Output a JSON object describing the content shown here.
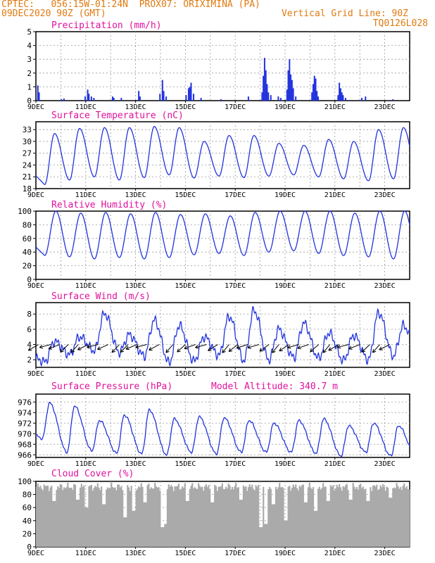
{
  "header": {
    "line1_left": "CPTEC:   056:15W-01:24N  PROX07: ORIXIMINA (PA)",
    "line2_left": "09DEC2020 90Z (GMT)",
    "line2_right": "Vertical Grid Line: 90Z",
    "line3_right": "TQ0126L028",
    "model_altitude": "Model Altitude: 340.7 m"
  },
  "colors": {
    "header": "#e07a10",
    "panel_title": "#e0119c",
    "series": "#2233dd",
    "cloud": "#aaaaaa",
    "arrow": "#000000"
  },
  "x_ticks": [
    "9DEC",
    "11DEC",
    "13DEC",
    "15DEC",
    "17DEC",
    "19DEC",
    "21DEC",
    "23DEC"
  ],
  "chart_data": [
    {
      "type": "bar",
      "title": "Precipitation (mm/h)",
      "ylim": [
        0,
        5
      ],
      "yticks": [
        "0",
        "1",
        "2",
        "3",
        "4",
        "5"
      ],
      "grid": true,
      "x_range_days": [
        0,
        15
      ],
      "points": [
        {
          "day": 0.05,
          "value": 1.1
        },
        {
          "day": 0.1,
          "value": 0.6
        },
        {
          "day": 1.0,
          "value": 0.1
        },
        {
          "day": 1.1,
          "value": 0.15
        },
        {
          "day": 1.95,
          "value": 0.3
        },
        {
          "day": 2.05,
          "value": 0.8
        },
        {
          "day": 2.1,
          "value": 0.5
        },
        {
          "day": 2.2,
          "value": 0.3
        },
        {
          "day": 2.3,
          "value": 0.2
        },
        {
          "day": 3.05,
          "value": 0.3
        },
        {
          "day": 3.1,
          "value": 0.2
        },
        {
          "day": 3.4,
          "value": 0.2
        },
        {
          "day": 4.1,
          "value": 0.7
        },
        {
          "day": 4.15,
          "value": 0.3
        },
        {
          "day": 4.95,
          "value": 0.5
        },
        {
          "day": 5.05,
          "value": 1.5
        },
        {
          "day": 5.1,
          "value": 0.7
        },
        {
          "day": 5.2,
          "value": 0.3
        },
        {
          "day": 6.0,
          "value": 0.4
        },
        {
          "day": 6.1,
          "value": 0.9
        },
        {
          "day": 6.15,
          "value": 1.0
        },
        {
          "day": 6.2,
          "value": 1.3
        },
        {
          "day": 6.3,
          "value": 0.5
        },
        {
          "day": 6.6,
          "value": 0.2
        },
        {
          "day": 7.4,
          "value": 0.1
        },
        {
          "day": 8.5,
          "value": 0.3
        },
        {
          "day": 9.05,
          "value": 0.6
        },
        {
          "day": 9.1,
          "value": 1.8
        },
        {
          "day": 9.15,
          "value": 3.1
        },
        {
          "day": 9.2,
          "value": 2.2
        },
        {
          "day": 9.25,
          "value": 1.2
        },
        {
          "day": 9.3,
          "value": 0.6
        },
        {
          "day": 9.4,
          "value": 0.4
        },
        {
          "day": 9.7,
          "value": 0.3
        },
        {
          "day": 9.8,
          "value": 0.2
        },
        {
          "day": 10.05,
          "value": 0.8
        },
        {
          "day": 10.1,
          "value": 2.2
        },
        {
          "day": 10.15,
          "value": 3.0
        },
        {
          "day": 10.2,
          "value": 1.9
        },
        {
          "day": 10.25,
          "value": 1.5
        },
        {
          "day": 10.3,
          "value": 0.9
        },
        {
          "day": 10.4,
          "value": 0.3
        },
        {
          "day": 11.05,
          "value": 0.6
        },
        {
          "day": 11.1,
          "value": 1.2
        },
        {
          "day": 11.15,
          "value": 1.8
        },
        {
          "day": 11.2,
          "value": 1.6
        },
        {
          "day": 11.25,
          "value": 0.7
        },
        {
          "day": 11.3,
          "value": 0.3
        },
        {
          "day": 12.1,
          "value": 0.4
        },
        {
          "day": 12.15,
          "value": 1.3
        },
        {
          "day": 12.2,
          "value": 0.9
        },
        {
          "day": 12.25,
          "value": 0.6
        },
        {
          "day": 12.3,
          "value": 0.4
        },
        {
          "day": 12.4,
          "value": 0.2
        },
        {
          "day": 13.05,
          "value": 0.2
        },
        {
          "day": 13.2,
          "value": 0.3
        },
        {
          "day": 14.3,
          "value": 0.1
        }
      ]
    },
    {
      "type": "line",
      "title": "Surface Temperature (nC)",
      "ylim": [
        18,
        35
      ],
      "yticks": [
        "18",
        "21",
        "24",
        "27",
        "30",
        "33"
      ],
      "grid": true,
      "daily": [
        {
          "max": 32.0,
          "min": 19.0
        },
        {
          "max": 33.3,
          "min": 20.2
        },
        {
          "max": 33.5,
          "min": 21.0
        },
        {
          "max": 33.5,
          "min": 20.2
        },
        {
          "max": 33.8,
          "min": 20.8
        },
        {
          "max": 33.5,
          "min": 21.5
        },
        {
          "max": 30.0,
          "min": 20.7
        },
        {
          "max": 31.5,
          "min": 21.2
        },
        {
          "max": 31.5,
          "min": 20.8
        },
        {
          "max": 29.5,
          "min": 21.2
        },
        {
          "max": 29.0,
          "min": 21.5
        },
        {
          "max": 30.5,
          "min": 21.0
        },
        {
          "max": 30.0,
          "min": 20.5
        },
        {
          "max": 33.0,
          "min": 20.0
        },
        {
          "max": 33.5,
          "min": 20.5
        }
      ]
    },
    {
      "type": "line",
      "title": "Relative Humidity (%)",
      "ylim": [
        0,
        100
      ],
      "yticks": [
        "0",
        "20",
        "40",
        "60",
        "80",
        "100"
      ],
      "grid": true,
      "daily": [
        {
          "max": 100,
          "min": 35
        },
        {
          "max": 97,
          "min": 33
        },
        {
          "max": 98,
          "min": 30
        },
        {
          "max": 96,
          "min": 32
        },
        {
          "max": 98,
          "min": 30
        },
        {
          "max": 95,
          "min": 32
        },
        {
          "max": 96,
          "min": 36
        },
        {
          "max": 93,
          "min": 38
        },
        {
          "max": 98,
          "min": 35
        },
        {
          "max": 100,
          "min": 40
        },
        {
          "max": 100,
          "min": 42
        },
        {
          "max": 100,
          "min": 38
        },
        {
          "max": 97,
          "min": 35
        },
        {
          "max": 100,
          "min": 33
        },
        {
          "max": 100,
          "min": 30
        }
      ]
    },
    {
      "type": "line",
      "title": "Surface Wind (m/s)",
      "ylim": [
        1,
        9.5
      ],
      "yticks": [
        "2",
        "4",
        "6",
        "8"
      ],
      "grid": true,
      "daily": [
        {
          "max": 4.4,
          "min": 1.7
        },
        {
          "max": 5.0,
          "min": 2.7
        },
        {
          "max": 8.1,
          "min": 3.2
        },
        {
          "max": 5.3,
          "min": 3.0
        },
        {
          "max": 7.2,
          "min": 2.5
        },
        {
          "max": 6.5,
          "min": 1.6
        },
        {
          "max": 5.0,
          "min": 1.8
        },
        {
          "max": 7.7,
          "min": 2.6
        },
        {
          "max": 8.5,
          "min": 1.9
        },
        {
          "max": 6.0,
          "min": 2.0
        },
        {
          "max": 6.8,
          "min": 2.3
        },
        {
          "max": 5.5,
          "min": 2.2
        },
        {
          "max": 5.2,
          "min": 1.9
        },
        {
          "max": 8.2,
          "min": 2.0
        },
        {
          "max": 6.5,
          "min": 2.5
        }
      ],
      "arrows_days": [
        0.1,
        0.6,
        0.95,
        1.3,
        1.7,
        2.1,
        2.5,
        2.9,
        3.35,
        3.7,
        4.05,
        4.45,
        4.95,
        5.5,
        6.0,
        6.4,
        6.85,
        7.3,
        7.75,
        8.1,
        8.5,
        8.95,
        9.35,
        9.75,
        10.15,
        10.55,
        10.95,
        11.35,
        11.8,
        12.15,
        12.55,
        13.0,
        13.4,
        13.8,
        14.2
      ]
    },
    {
      "type": "line",
      "title": "Surface Pressure (hPa)",
      "ylim": [
        965.5,
        977.5
      ],
      "yticks": [
        "966",
        "968",
        "970",
        "972",
        "974",
        "976"
      ],
      "grid": true,
      "daily": [
        {
          "max": 975.8,
          "min": 969.0
        },
        {
          "max": 975.2,
          "min": 966.5
        },
        {
          "max": 972.5,
          "min": 966.8
        },
        {
          "max": 973.5,
          "min": 966.3
        },
        {
          "max": 974.5,
          "min": 966.2
        },
        {
          "max": 972.8,
          "min": 966.0
        },
        {
          "max": 973.2,
          "min": 966.5
        },
        {
          "max": 973.0,
          "min": 966.2
        },
        {
          "max": 972.5,
          "min": 966.5
        },
        {
          "max": 972.0,
          "min": 966.5
        },
        {
          "max": 972.5,
          "min": 966.5
        },
        {
          "max": 972.8,
          "min": 966.3
        },
        {
          "max": 971.5,
          "min": 965.8
        },
        {
          "max": 972.0,
          "min": 966.5
        },
        {
          "max": 971.5,
          "min": 965.8
        }
      ]
    },
    {
      "type": "bar",
      "title": "Cloud Cover (%)",
      "ylim": [
        0,
        100
      ],
      "yticks": [
        "0",
        "20",
        "40",
        "60",
        "80",
        "100"
      ],
      "grid": true,
      "x_range_days": [
        0,
        15
      ],
      "typical_range": [
        85,
        98
      ],
      "dips": [
        {
          "day": 0.7,
          "value": 70
        },
        {
          "day": 1.65,
          "value": 72
        },
        {
          "day": 2.0,
          "value": 60
        },
        {
          "day": 2.7,
          "value": 65
        },
        {
          "day": 3.55,
          "value": 45
        },
        {
          "day": 3.9,
          "value": 55
        },
        {
          "day": 4.35,
          "value": 68
        },
        {
          "day": 5.05,
          "value": 30
        },
        {
          "day": 5.15,
          "value": 35
        },
        {
          "day": 6.05,
          "value": 70
        },
        {
          "day": 7.05,
          "value": 68
        },
        {
          "day": 8.2,
          "value": 72
        },
        {
          "day": 9.0,
          "value": 30
        },
        {
          "day": 9.2,
          "value": 35
        },
        {
          "day": 9.5,
          "value": 65
        },
        {
          "day": 10.0,
          "value": 40
        },
        {
          "day": 10.8,
          "value": 68
        },
        {
          "day": 11.2,
          "value": 55
        },
        {
          "day": 11.7,
          "value": 70
        },
        {
          "day": 12.6,
          "value": 72
        },
        {
          "day": 13.3,
          "value": 70
        },
        {
          "day": 14.2,
          "value": 75
        }
      ]
    }
  ]
}
